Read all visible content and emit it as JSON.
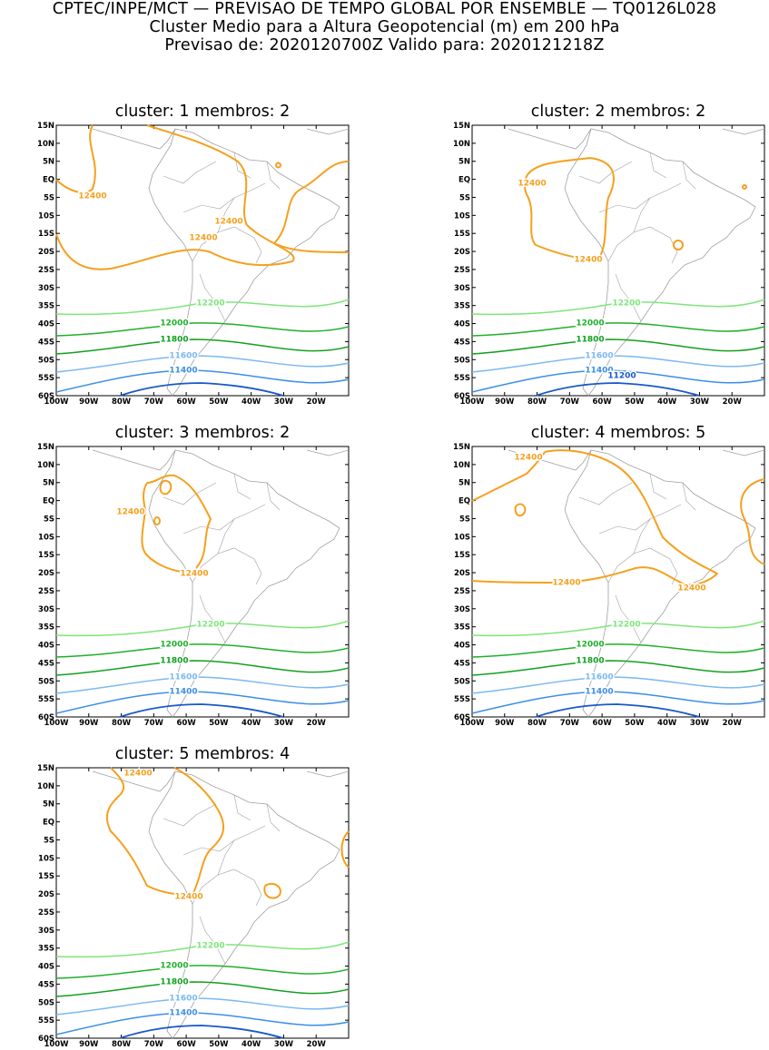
{
  "header": {
    "line1": "CPTEC/INPE/MCT — PREVISAO DE TEMPO GLOBAL POR ENSEMBLE — TQ0126L028",
    "line2": "Cluster Medio para a Altura Geopotencial (m) em 200 hPa",
    "line3": "Previsao de: 2020120700Z    Valido para: 2020121218Z"
  },
  "axes": {
    "lat_labels": [
      "15N",
      "10N",
      "5N",
      "EQ",
      "5S",
      "10S",
      "15S",
      "20S",
      "25S",
      "30S",
      "35S",
      "40S",
      "45S",
      "50S",
      "55S",
      "60S"
    ],
    "lon_labels": [
      "100W",
      "90W",
      "80W",
      "70W",
      "60W",
      "50W",
      "40W",
      "30W",
      "20W"
    ]
  },
  "colors": {
    "c12400": "#f5a01e",
    "c12200": "#7ee67a",
    "c12000": "#1fb02a",
    "c11800": "#12a01f",
    "c11600": "#7ab8f2",
    "c11400": "#3c8ee6",
    "c11200": "#1858c8",
    "coast": "#a0a0a0"
  },
  "panels": [
    {
      "title": "cluster: 1   membros: 2",
      "labels": {
        "a": "12400",
        "b": "12400",
        "c": "12400",
        "d": "12200",
        "e": "12000",
        "f": "11800",
        "g": "11600",
        "h": "11400"
      }
    },
    {
      "title": "cluster: 2   membros: 2",
      "labels": {
        "a": "12400",
        "b": "12400",
        "c": "12200",
        "d": "12000",
        "e": "11800",
        "f": "11600",
        "g": "11400",
        "h": "11200"
      }
    },
    {
      "title": "cluster: 3   membros: 2",
      "labels": {
        "a": "12400",
        "b": "12400",
        "c": "12200",
        "d": "12000",
        "e": "11800",
        "f": "11600",
        "g": "11400"
      }
    },
    {
      "title": "cluster: 4   membros: 5",
      "labels": {
        "a": "12400",
        "b": "12400",
        "c": "12400",
        "d": "12200",
        "e": "12000",
        "f": "11800",
        "g": "11600",
        "h": "11400"
      }
    },
    {
      "title": "cluster: 5   membros: 4",
      "labels": {
        "a": "12400",
        "b": "12400",
        "c": "12200",
        "d": "12000",
        "e": "11800",
        "f": "11600",
        "g": "11400"
      }
    }
  ]
}
